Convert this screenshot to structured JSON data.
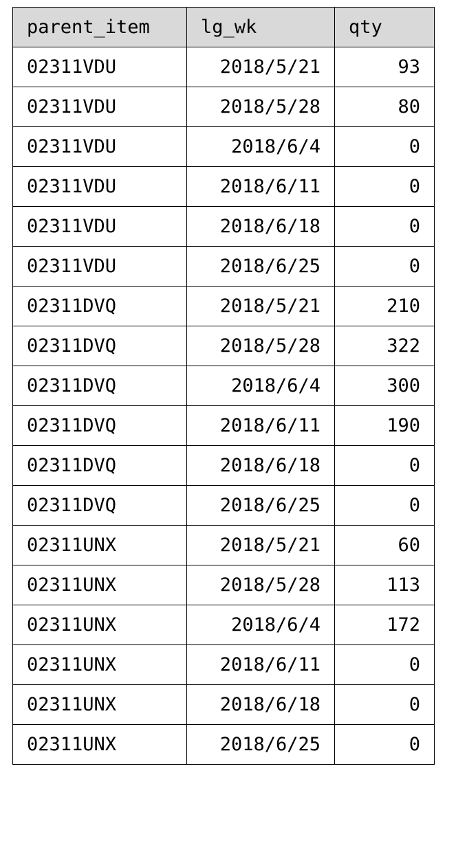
{
  "table": {
    "headers": [
      "parent_item",
      "lg_wk",
      "qty"
    ],
    "rows": [
      {
        "parent_item": "02311VDU",
        "lg_wk": "2018/5/21",
        "qty": "93"
      },
      {
        "parent_item": "02311VDU",
        "lg_wk": "2018/5/28",
        "qty": "80"
      },
      {
        "parent_item": "02311VDU",
        "lg_wk": "2018/6/4",
        "qty": "0"
      },
      {
        "parent_item": "02311VDU",
        "lg_wk": "2018/6/11",
        "qty": "0"
      },
      {
        "parent_item": "02311VDU",
        "lg_wk": "2018/6/18",
        "qty": "0"
      },
      {
        "parent_item": "02311VDU",
        "lg_wk": "2018/6/25",
        "qty": "0"
      },
      {
        "parent_item": "02311DVQ",
        "lg_wk": "2018/5/21",
        "qty": "210"
      },
      {
        "parent_item": "02311DVQ",
        "lg_wk": "2018/5/28",
        "qty": "322"
      },
      {
        "parent_item": "02311DVQ",
        "lg_wk": "2018/6/4",
        "qty": "300"
      },
      {
        "parent_item": "02311DVQ",
        "lg_wk": "2018/6/11",
        "qty": "190"
      },
      {
        "parent_item": "02311DVQ",
        "lg_wk": "2018/6/18",
        "qty": "0"
      },
      {
        "parent_item": "02311DVQ",
        "lg_wk": "2018/6/25",
        "qty": "0"
      },
      {
        "parent_item": "02311UNX",
        "lg_wk": "2018/5/21",
        "qty": "60"
      },
      {
        "parent_item": "02311UNX",
        "lg_wk": "2018/5/28",
        "qty": "113"
      },
      {
        "parent_item": "02311UNX",
        "lg_wk": "2018/6/4",
        "qty": "172"
      },
      {
        "parent_item": "02311UNX",
        "lg_wk": "2018/6/11",
        "qty": "0"
      },
      {
        "parent_item": "02311UNX",
        "lg_wk": "2018/6/18",
        "qty": "0"
      },
      {
        "parent_item": "02311UNX",
        "lg_wk": "2018/6/25",
        "qty": "0"
      }
    ]
  }
}
